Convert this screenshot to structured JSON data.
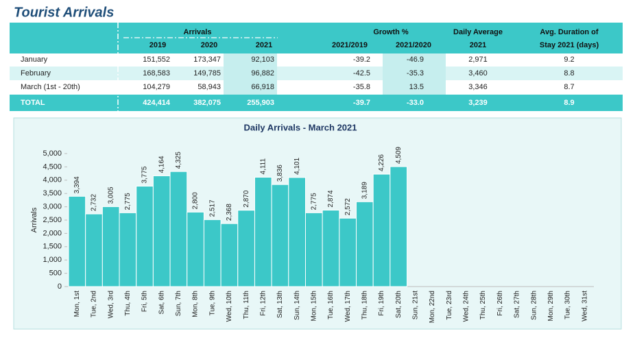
{
  "title": "Tourist Arrivals",
  "table": {
    "header_top": [
      "Arrivals",
      "Growth %",
      "Daily Average",
      "Avg. Duration of"
    ],
    "header_bottom": [
      "2019",
      "2020",
      "2021",
      "2021/2019",
      "2021/2020",
      "2021",
      "Stay 2021 (days)"
    ],
    "rows": [
      [
        "January",
        "151,552",
        "173,347",
        "92,103",
        "-39.2",
        "-46.9",
        "2,971",
        "9.2"
      ],
      [
        "February",
        "168,583",
        "149,785",
        "96,882",
        "-42.5",
        "-35.3",
        "3,460",
        "8.8"
      ],
      [
        "March (1st - 20th)",
        "104,279",
        "58,943",
        "66,918",
        "-35.8",
        "13.5",
        "3,346",
        "8.7"
      ],
      [
        "TOTAL",
        "424,414",
        "382,075",
        "255,903",
        "-39.7",
        "-33.0",
        "3,239",
        "8.9"
      ]
    ]
  },
  "chart_data": {
    "type": "bar",
    "title": "Daily Arrivals - March 2021",
    "ylabel": "Arrivals",
    "color": "#3cc8c8",
    "categories": [
      "Mon, 1st",
      "Tue, 2nd",
      "Wed, 3rd",
      "Thu, 4th",
      "Fri, 5th",
      "Sat, 6th",
      "Sun, 7th",
      "Mon, 8th",
      "Tue, 9th",
      "Wed, 10th",
      "Thu, 11th",
      "Fri, 12th",
      "Sat, 13th",
      "Sun, 14th",
      "Mon, 15th",
      "Tue, 16th",
      "Wed, 17th",
      "Thu, 18th",
      "Fri, 19th",
      "Sat, 20th",
      "Sun, 21st",
      "Mon, 22nd",
      "Tue, 23rd",
      "Wed, 24th",
      "Thu, 25th",
      "Fri, 26th",
      "Sat, 27th",
      "Sun, 28th",
      "Mon, 29th",
      "Tue, 30th",
      "Wed, 31st"
    ],
    "values": [
      3394,
      2732,
      3005,
      2775,
      3775,
      4164,
      4325,
      2800,
      2517,
      2368,
      2870,
      4111,
      3836,
      4101,
      2775,
      2874,
      2572,
      3189,
      4226,
      4509,
      null,
      null,
      null,
      null,
      null,
      null,
      null,
      null,
      null,
      null,
      null
    ],
    "value_labels": [
      "3,394",
      "2,732",
      "3,005",
      "2,775",
      "3,775",
      "4,164",
      "4,325",
      "2,800",
      "2,517",
      "2,368",
      "2,870",
      "4,111",
      "3,836",
      "4,101",
      "2,775",
      "2,874",
      "2,572",
      "3,189",
      "4,226",
      "4,509",
      null,
      null,
      null,
      null,
      null,
      null,
      null,
      null,
      null,
      null,
      null
    ],
    "ylim": [
      0,
      5000
    ],
    "yticks": [
      0,
      500,
      {
        "value": 1000,
        "label": "1,000"
      },
      {
        "value": 1500,
        "label": "1,500"
      },
      {
        "value": 2000,
        "label": "2,000"
      },
      {
        "value": 2500,
        "label": "2,500"
      },
      {
        "value": 3000,
        "label": "3,000"
      },
      {
        "value": 3500,
        "label": "3,500"
      },
      {
        "value": 4000,
        "label": "4,000"
      },
      {
        "value": 4500,
        "label": "4,500"
      },
      {
        "value": 5000,
        "label": "5,000"
      }
    ]
  }
}
